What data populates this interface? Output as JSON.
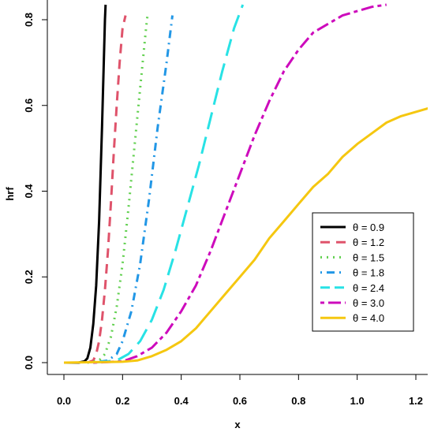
{
  "chart_data": {
    "type": "line",
    "title": "",
    "xlabel": "x",
    "ylabel": "hrf",
    "xlim": [
      -0.02,
      1.25
    ],
    "ylim": [
      -0.02,
      0.835
    ],
    "x_ticks": [
      "0.0",
      "0.2",
      "0.4",
      "0.6",
      "0.8",
      "1.0",
      "1.2"
    ],
    "y_ticks": [
      "0.0",
      "0.2",
      "0.4",
      "0.6",
      "0.8"
    ],
    "legend_position": "bottom-right",
    "grid": false,
    "series": [
      {
        "name": "θ = 0.9",
        "color": "#000000",
        "dash": "solid",
        "points": [
          [
            0.0,
            0.0
          ],
          [
            0.05,
            0.0
          ],
          [
            0.07,
            0.003
          ],
          [
            0.08,
            0.01
          ],
          [
            0.09,
            0.035
          ],
          [
            0.1,
            0.09
          ],
          [
            0.11,
            0.18
          ],
          [
            0.12,
            0.33
          ],
          [
            0.13,
            0.55
          ],
          [
            0.14,
            0.8
          ],
          [
            0.142,
            0.835
          ]
        ]
      },
      {
        "name": "θ = 1.2",
        "color": "#DF536B",
        "dash": "dashed",
        "points": [
          [
            0.08,
            0.0
          ],
          [
            0.1,
            0.005
          ],
          [
            0.11,
            0.02
          ],
          [
            0.12,
            0.05
          ],
          [
            0.13,
            0.1
          ],
          [
            0.14,
            0.17
          ],
          [
            0.15,
            0.26
          ],
          [
            0.16,
            0.37
          ],
          [
            0.17,
            0.49
          ],
          [
            0.18,
            0.6
          ],
          [
            0.19,
            0.7
          ],
          [
            0.2,
            0.78
          ],
          [
            0.21,
            0.81
          ]
        ]
      },
      {
        "name": "θ = 1.5",
        "color": "#61D04F",
        "dash": "dotted",
        "points": [
          [
            0.08,
            0.0
          ],
          [
            0.12,
            0.005
          ],
          [
            0.14,
            0.02
          ],
          [
            0.16,
            0.06
          ],
          [
            0.18,
            0.13
          ],
          [
            0.2,
            0.23
          ],
          [
            0.22,
            0.36
          ],
          [
            0.24,
            0.5
          ],
          [
            0.26,
            0.64
          ],
          [
            0.28,
            0.78
          ],
          [
            0.285,
            0.81
          ]
        ]
      },
      {
        "name": "θ = 1.8",
        "color": "#2297E6",
        "dash": "dotdash",
        "points": [
          [
            0.1,
            0.0
          ],
          [
            0.15,
            0.005
          ],
          [
            0.18,
            0.02
          ],
          [
            0.2,
            0.05
          ],
          [
            0.23,
            0.12
          ],
          [
            0.26,
            0.23
          ],
          [
            0.29,
            0.38
          ],
          [
            0.32,
            0.55
          ],
          [
            0.35,
            0.7
          ],
          [
            0.37,
            0.81
          ]
        ]
      },
      {
        "name": "θ = 2.4",
        "color": "#28E2E5",
        "dash": "longdash",
        "points": [
          [
            0.1,
            0.0
          ],
          [
            0.18,
            0.005
          ],
          [
            0.22,
            0.02
          ],
          [
            0.26,
            0.05
          ],
          [
            0.3,
            0.1
          ],
          [
            0.34,
            0.17
          ],
          [
            0.38,
            0.26
          ],
          [
            0.42,
            0.36
          ],
          [
            0.46,
            0.46
          ],
          [
            0.5,
            0.57
          ],
          [
            0.54,
            0.68
          ],
          [
            0.58,
            0.78
          ],
          [
            0.61,
            0.835
          ]
        ]
      },
      {
        "name": "θ = 3.0",
        "color": "#CD0BBC",
        "dash": "twodash",
        "points": [
          [
            0.1,
            0.0
          ],
          [
            0.2,
            0.003
          ],
          [
            0.25,
            0.015
          ],
          [
            0.3,
            0.035
          ],
          [
            0.35,
            0.07
          ],
          [
            0.4,
            0.12
          ],
          [
            0.45,
            0.18
          ],
          [
            0.5,
            0.26
          ],
          [
            0.55,
            0.35
          ],
          [
            0.6,
            0.44
          ],
          [
            0.65,
            0.53
          ],
          [
            0.7,
            0.61
          ],
          [
            0.75,
            0.68
          ],
          [
            0.8,
            0.73
          ],
          [
            0.85,
            0.77
          ],
          [
            0.9,
            0.79
          ],
          [
            0.95,
            0.81
          ],
          [
            1.0,
            0.82
          ],
          [
            1.05,
            0.83
          ],
          [
            1.1,
            0.835
          ]
        ]
      },
      {
        "name": "θ = 4.0",
        "color": "#F5C710",
        "dash": "solid",
        "points": [
          [
            0.0,
            0.0
          ],
          [
            0.2,
            0.002
          ],
          [
            0.25,
            0.005
          ],
          [
            0.3,
            0.015
          ],
          [
            0.35,
            0.03
          ],
          [
            0.4,
            0.05
          ],
          [
            0.45,
            0.08
          ],
          [
            0.5,
            0.12
          ],
          [
            0.55,
            0.16
          ],
          [
            0.6,
            0.2
          ],
          [
            0.65,
            0.24
          ],
          [
            0.7,
            0.29
          ],
          [
            0.75,
            0.33
          ],
          [
            0.8,
            0.37
          ],
          [
            0.85,
            0.41
          ],
          [
            0.9,
            0.44
          ],
          [
            0.95,
            0.48
          ],
          [
            1.0,
            0.51
          ],
          [
            1.05,
            0.535
          ],
          [
            1.1,
            0.56
          ],
          [
            1.15,
            0.575
          ],
          [
            1.2,
            0.585
          ],
          [
            1.25,
            0.595
          ]
        ]
      }
    ]
  }
}
